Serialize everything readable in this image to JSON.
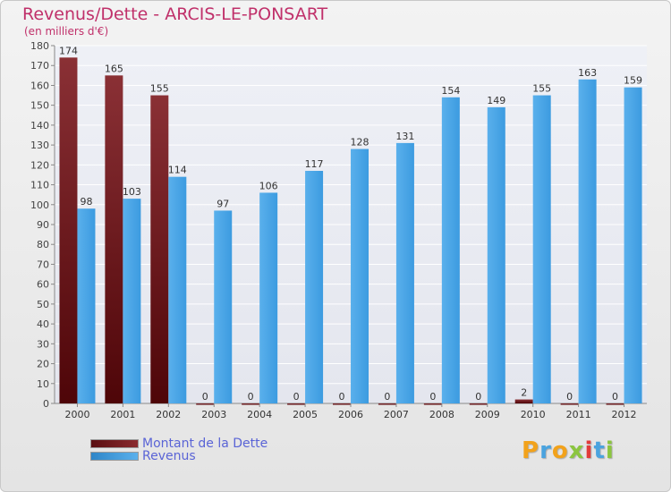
{
  "header": {
    "title": "Revenus/Dette - ARCIS-LE-PONSART",
    "subtitle": "(en milliers d'€)"
  },
  "colors": {
    "dette": "#6d1a1e",
    "revenus": "#3c9be0"
  },
  "chart_data": {
    "type": "bar",
    "title": "Revenus/Dette - ARCIS-LE-PONSART",
    "ylabel": "(en milliers d'€)",
    "xlabel": "",
    "ylim": [
      0,
      180
    ],
    "ytick_step": 10,
    "grid": true,
    "legend_position": "bottom-left",
    "categories": [
      "2000",
      "2001",
      "2002",
      "2003",
      "2004",
      "2005",
      "2006",
      "2007",
      "2008",
      "2009",
      "2010",
      "2011",
      "2012"
    ],
    "series": [
      {
        "name": "Montant de la Dette",
        "values": [
          174,
          165,
          155,
          0,
          0,
          0,
          0,
          0,
          0,
          0,
          2,
          0,
          0
        ]
      },
      {
        "name": "Revenus",
        "values": [
          98,
          103,
          114,
          97,
          106,
          117,
          128,
          131,
          154,
          149,
          155,
          163,
          159
        ]
      }
    ]
  },
  "legend": {
    "items": [
      {
        "label": "Montant de la Dette"
      },
      {
        "label": "Revenus"
      }
    ]
  },
  "logo": {
    "letters": [
      "P",
      "r",
      "o",
      "x",
      "i",
      "t",
      "i"
    ],
    "colors": [
      "#f2a21b",
      "#4aa3df",
      "#f2a21b",
      "#8bc53f",
      "#e23a3a",
      "#4aa3df",
      "#8bc53f"
    ]
  }
}
